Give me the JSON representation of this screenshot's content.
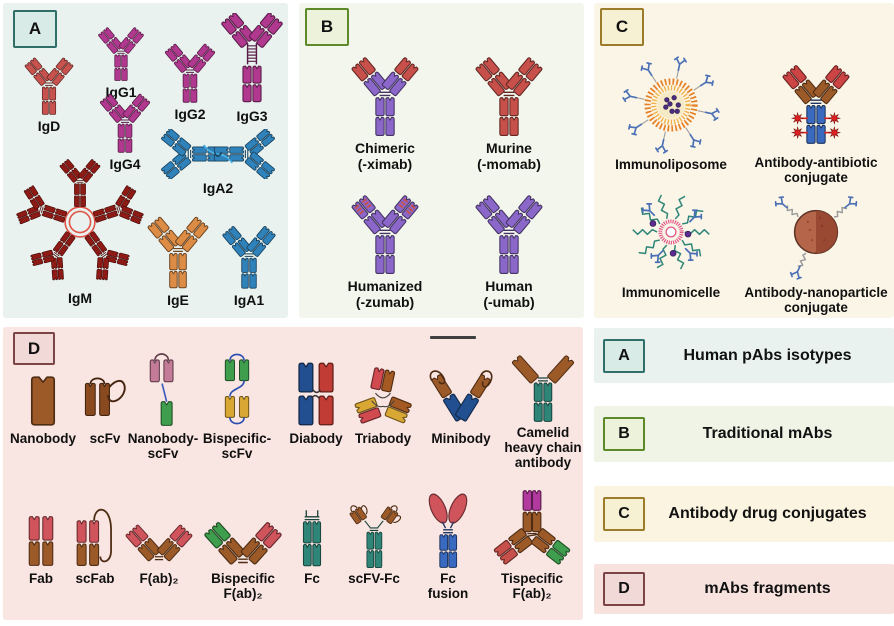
{
  "panels": {
    "a": {
      "badge": "A",
      "items": [
        {
          "glyph": "antibody",
          "lines": [
            "IgD"
          ],
          "colors": {
            "body": "#c8534e"
          }
        },
        {
          "glyph": "antibody",
          "lines": [
            "IgG1"
          ],
          "colors": {
            "body": "#b1388f"
          }
        },
        {
          "glyph": "antibody",
          "lines": [
            "IgG2"
          ],
          "colors": {
            "body": "#b1388f"
          }
        },
        {
          "glyph": "antibody-long-hinge",
          "lines": [
            "IgG3"
          ],
          "colors": {
            "body": "#b1388f"
          }
        },
        {
          "glyph": "antibody",
          "lines": [
            "IgG4"
          ],
          "colors": {
            "body": "#b1388f"
          }
        },
        {
          "glyph": "iga2-dimer",
          "lines": [
            "IgA2"
          ],
          "colors": {
            "body": "#2f82ba",
            "accent": "#45b1e8"
          }
        },
        {
          "glyph": "igm-pentamer",
          "lines": [
            "IgM"
          ],
          "colors": {
            "body": "#8e1a15",
            "ring": "#e05549"
          }
        },
        {
          "glyph": "antibody",
          "lines": [
            "IgE"
          ],
          "colors": {
            "body": "#dd8c45"
          }
        },
        {
          "glyph": "antibody",
          "lines": [
            "IgA1"
          ],
          "colors": {
            "body": "#2f82ba"
          }
        }
      ]
    },
    "b": {
      "badge": "B",
      "items": [
        {
          "glyph": "antibody",
          "lines": [
            "Chimeric",
            "(-ximab)"
          ],
          "colors": {
            "body": "#8a67c8",
            "tip": "#c8504a"
          }
        },
        {
          "glyph": "antibody",
          "lines": [
            "Murine",
            "(-momab)"
          ],
          "colors": {
            "body": "#c8504a"
          }
        },
        {
          "glyph": "antibody",
          "lines": [
            "Humanized",
            "(-zumab)"
          ],
          "colors": {
            "body": "#8a67c8",
            "stripe": "#c8504a"
          }
        },
        {
          "glyph": "antibody",
          "lines": [
            "Human",
            "(-umab)"
          ],
          "colors": {
            "body": "#8a67c8"
          }
        }
      ]
    },
    "c": {
      "badge": "C",
      "items": [
        {
          "glyph": "liposome",
          "lines": [
            "Immunoliposome"
          ],
          "colors": {
            "ring": "#e67e22",
            "mid": "#f0b14a",
            "core": "#f6e9c5",
            "dot": "#4a2d7e",
            "y": "#4a6fb5"
          }
        },
        {
          "glyph": "antibiotic-conjugate",
          "lines": [
            "Antibody-antibiotic",
            "conjugate"
          ],
          "colors": {
            "tip": "#cc4444",
            "arm": "#9c5a28",
            "stem": "#3a6abf",
            "star": "#e02020"
          }
        },
        {
          "glyph": "micelle",
          "lines": [
            "Immunomicelle"
          ],
          "colors": {
            "core": "#e0558a",
            "tail": "#2e8578",
            "dot": "#5b2d8e",
            "y": "#4a6fb5"
          }
        },
        {
          "glyph": "nanoparticle",
          "lines": [
            "Antibody-nanoparticle",
            "conjugate"
          ],
          "colors": {
            "sphere": "#b5654a",
            "dark": "#96452f",
            "y": "#4a6fb5"
          }
        }
      ]
    },
    "d": {
      "badge": "D",
      "items": [
        {
          "glyph": "nanobody",
          "lines": [
            "Nanobody"
          ],
          "colors": {
            "body": "#9c5a28"
          }
        },
        {
          "glyph": "scfv",
          "lines": [
            "scFv"
          ],
          "colors": {
            "body": "#8a4a1f"
          }
        },
        {
          "glyph": "nanobody-scfv",
          "lines": [
            "Nanobody-",
            "scFv"
          ],
          "colors": {
            "top": "#c47b97",
            "bottom": "#3f9e4d",
            "link": "#3a5bbf"
          }
        },
        {
          "glyph": "bispecific-scfv",
          "lines": [
            "Bispecific-",
            "scFv"
          ],
          "colors": {
            "top": "#3f9e4d",
            "bottom": "#d9a733",
            "loop": "#2a4db0"
          }
        },
        {
          "glyph": "diabody",
          "lines": [
            "Diabody"
          ],
          "colors": {
            "left": "#224f8f",
            "right": "#c03c34"
          }
        },
        {
          "glyph": "triabody",
          "lines": [
            "Triabody"
          ],
          "colors": {
            "c1": "#d04a50",
            "c2": "#a45a22",
            "c3": "#d9a733"
          }
        },
        {
          "glyph": "minibody",
          "lines": [
            "Minibody"
          ],
          "colors": {
            "arm": "#224f8f",
            "scfv": "#9c5a28"
          }
        },
        {
          "glyph": "camelid",
          "lines": [
            "Camelid",
            "heavy chain",
            "antibody"
          ],
          "colors": {
            "arm": "#9c5a28",
            "stem": "#2e8578"
          }
        },
        {
          "glyph": "fab",
          "lines": [
            "Fab"
          ],
          "colors": {
            "tip": "#d0545c",
            "base": "#9c5a28"
          }
        },
        {
          "glyph": "scfab",
          "lines": [
            "scFab"
          ],
          "colors": {
            "tip": "#d0545c",
            "base": "#9c5a28"
          }
        },
        {
          "glyph": "fab2",
          "lines": [
            "F(ab)₂"
          ],
          "colors": {
            "tipL": "#d0545c",
            "tipR": "#d0545c",
            "base": "#9c5a28"
          }
        },
        {
          "glyph": "fab2",
          "lines": [
            "Bispecific",
            "F(ab)₂"
          ],
          "colors": {
            "tipL": "#3f9e4d",
            "tipR": "#d0545c",
            "base": "#9c5a28"
          }
        },
        {
          "glyph": "fc",
          "lines": [
            "Fc"
          ],
          "colors": {
            "body": "#2e8578"
          }
        },
        {
          "glyph": "scfv-fc",
          "lines": [
            "scFV-Fc"
          ],
          "colors": {
            "fc": "#2e8578",
            "scfv": "#9c5a28"
          }
        },
        {
          "glyph": "fc-fusion",
          "lines": [
            "Fc",
            "fusion"
          ],
          "colors": {
            "stem": "#3a6abf",
            "lobe": "#d0545c"
          }
        },
        {
          "glyph": "tispecific-fab2",
          "lines": [
            "Tispecific",
            "F(ab)₂"
          ],
          "colors": {
            "top": "#b23a9e",
            "left": "#c8504a",
            "right": "#3f9e4d",
            "base": "#9c5a28"
          }
        }
      ]
    }
  },
  "legend": {
    "rows": [
      {
        "badge": "A",
        "label": "Human pAbs isotypes"
      },
      {
        "badge": "B",
        "label": "Traditional mAbs"
      },
      {
        "badge": "C",
        "label": "Antibody drug conjugates"
      },
      {
        "badge": "D",
        "label": "mAbs fragments"
      }
    ]
  },
  "theme": {
    "page_bg": "#ffffff",
    "panel_a_bg": "#e9f2ee",
    "panel_b_bg": "#f3f6ec",
    "panel_c_bg": "#faf5e6",
    "panel_d_bg": "#f9e5e1",
    "badge_a_bg": "#d9ebe6",
    "badge_a_border": "#2f6f68",
    "badge_b_bg": "#edf3da",
    "badge_b_border": "#5c8a28",
    "badge_c_bg": "#f7f1d3",
    "badge_c_border": "#9c7c2a",
    "badge_d_bg": "#f0d9d7",
    "badge_d_border": "#7c4545",
    "legend_a_bg": "#e9f2ee",
    "legend_b_bg": "#f0f4e6",
    "legend_c_bg": "#faf4e0",
    "legend_d_bg": "#f7e2de",
    "scalebar": "#3f3f3f"
  }
}
